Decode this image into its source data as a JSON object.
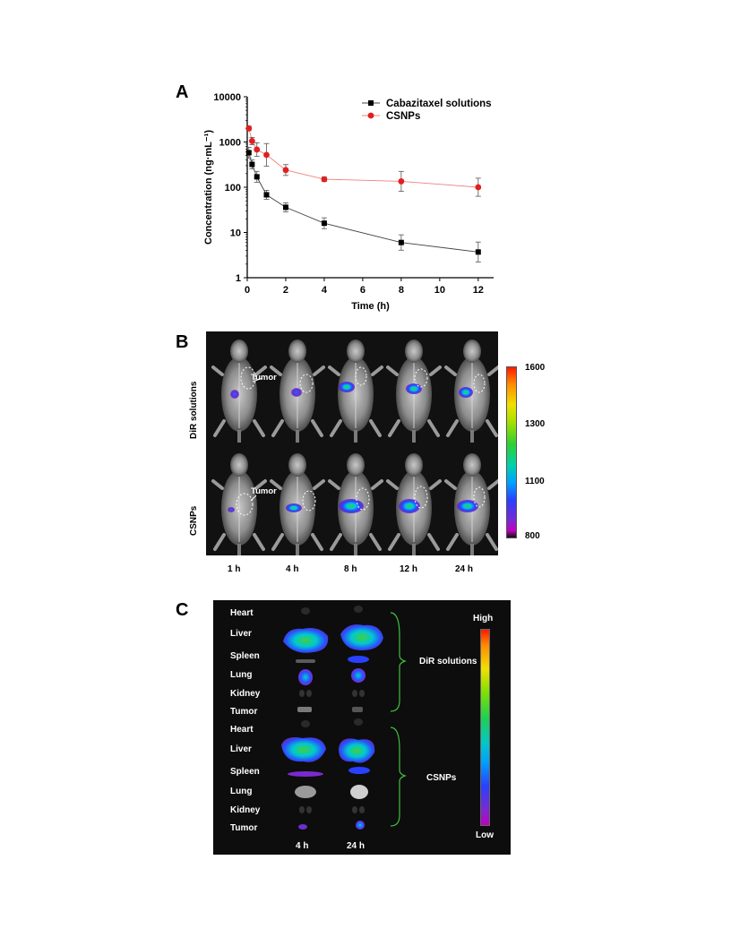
{
  "panel_a": {
    "letter": "A",
    "legend": [
      {
        "label": "Cabazitaxel solutions",
        "color": "#000000",
        "marker": "square"
      },
      {
        "label": "CSNPs",
        "color": "#e02020",
        "marker": "circle"
      }
    ]
  },
  "chart_data": {
    "type": "scatter",
    "xlabel": "Time (h)",
    "ylabel": "Concentration (ng·mL⁻¹)",
    "x_ticks": [
      "0",
      "2",
      "4",
      "6",
      "8",
      "10",
      "12"
    ],
    "y_ticks": [
      "1",
      "10",
      "100",
      "1000",
      "10000"
    ],
    "xlim": [
      0,
      12.8
    ],
    "ylim": [
      1,
      10000
    ],
    "y_scale": "log",
    "legend_position": "top-right",
    "series": [
      {
        "name": "Cabazitaxel solutions",
        "x": [
          0.083,
          0.25,
          0.5,
          1,
          2,
          4,
          8,
          12
        ],
        "y": [
          580,
          320,
          170,
          68,
          36,
          16,
          6,
          3.7
        ],
        "err": [
          0.12,
          0.1,
          0.12,
          0.1,
          0.1,
          0.12,
          0.17,
          0.22
        ]
      },
      {
        "name": "CSNPs",
        "x": [
          0.083,
          0.25,
          0.5,
          1,
          2,
          4,
          8,
          12
        ],
        "y": [
          2000,
          1050,
          680,
          520,
          240,
          150,
          135,
          100
        ],
        "err": [
          0.05,
          0.08,
          0.15,
          0.25,
          0.12,
          0.05,
          0.22,
          0.2
        ]
      }
    ]
  },
  "panel_b": {
    "letter": "B",
    "rows": [
      "DiR solutions",
      "CSNPs"
    ],
    "times": [
      "1 h",
      "4 h",
      "8 h",
      "12 h",
      "24 h"
    ],
    "tumor_label": "Tumor",
    "scale_ticks": [
      "1600",
      "1300",
      "1100",
      "800"
    ]
  },
  "panel_c": {
    "letter": "C",
    "organs_group1": [
      "Heart",
      "Liver",
      "Spleen",
      "Lung",
      "Kidney",
      "Tumor"
    ],
    "organs_group2": [
      "Heart",
      "Liver",
      "Spleen",
      "Lung",
      "Kidney",
      "Tumor"
    ],
    "groups": [
      "DiR solutions",
      "CSNPs"
    ],
    "times": [
      "4 h",
      "24 h"
    ],
    "scale_high": "High",
    "scale_low": "Low"
  }
}
